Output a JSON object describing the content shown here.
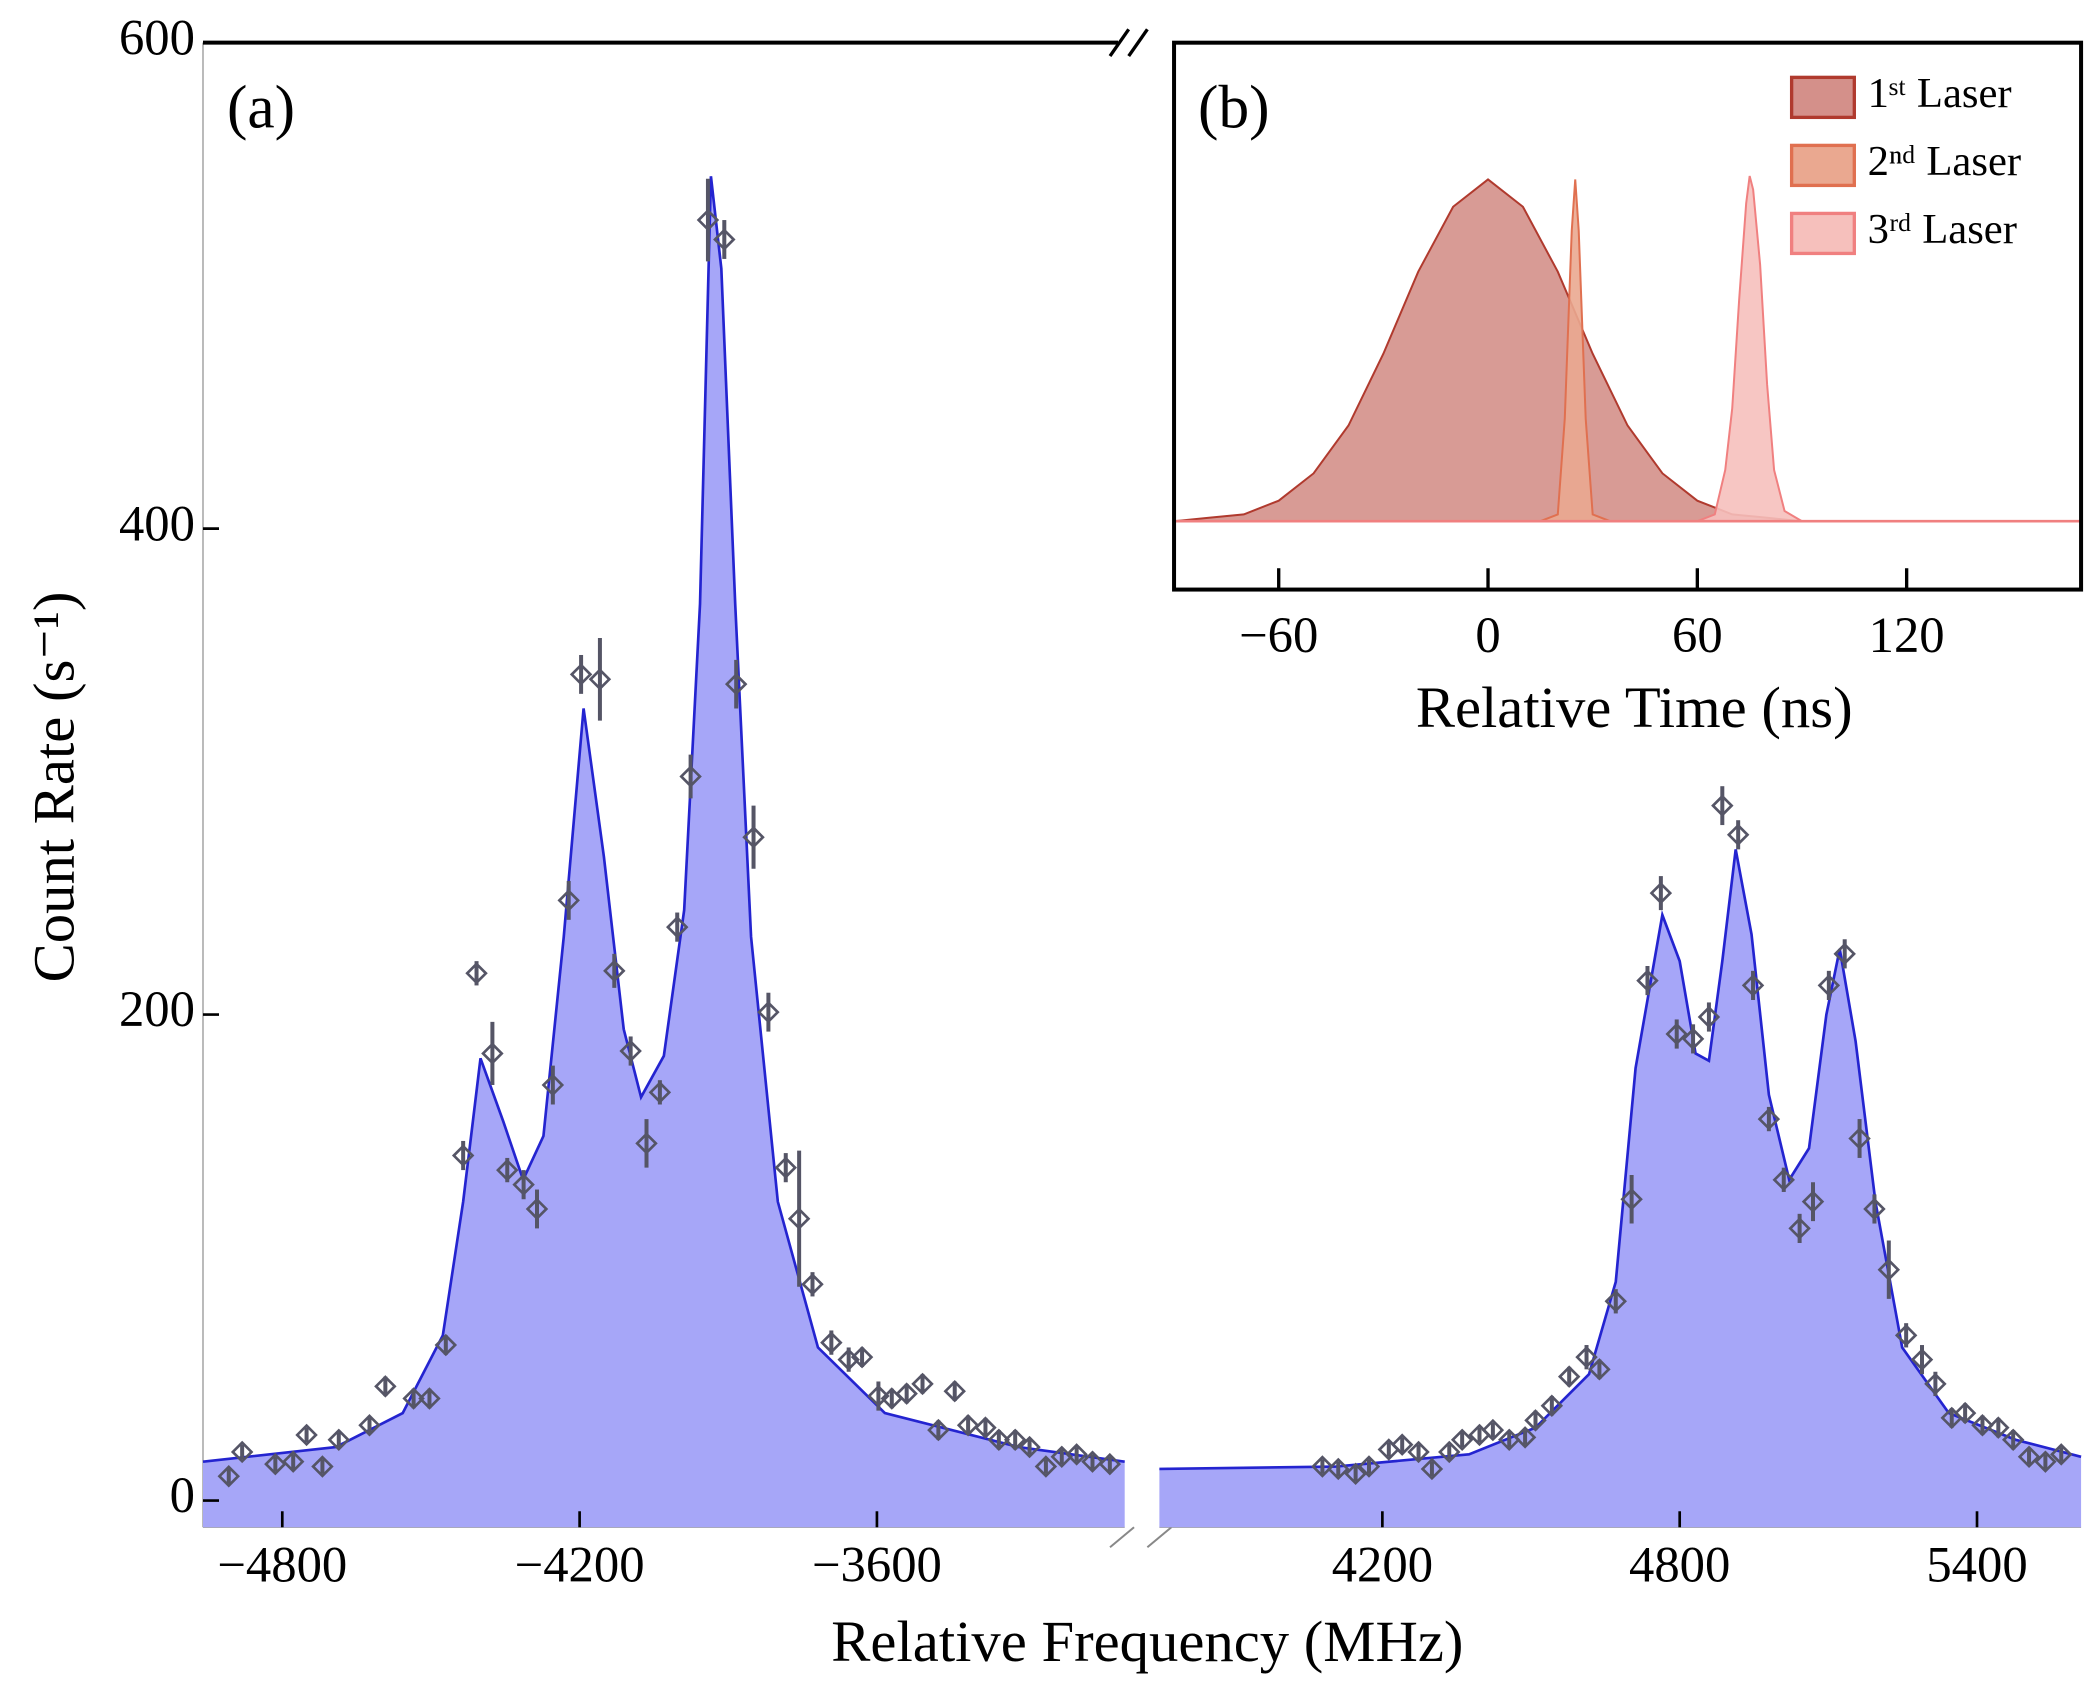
{
  "chart_data": [
    {
      "type": "area",
      "panel_label": "(a)",
      "xlabel": "Relative Frequency (MHz)",
      "ylabel": "Count Rate (s⁻¹)",
      "xlim": [
        -4960,
        5610
      ],
      "axis_break": [
        -3100,
        3750
      ],
      "ylim": [
        -11,
        600
      ],
      "xticks": [
        {
          "value": -4800,
          "label": "−4800"
        },
        {
          "value": -4200,
          "label": "−4200"
        },
        {
          "value": -3600,
          "label": "−3600"
        },
        4200,
        4800,
        5400
      ],
      "yticks": [
        0,
        200,
        400,
        600
      ],
      "fill_color": "#a6a6f8",
      "line_color": "#2424d0",
      "marker_color": "#555566",
      "series": [
        {
          "x": [
            -4960,
            -4692,
            -4557,
            -4476,
            -4435,
            -4400,
            -4354,
            -4314,
            -4273,
            -4232,
            -4192,
            -4151,
            -4111,
            -4076,
            -4030,
            -3989,
            -3957,
            -3935,
            -3914,
            -3886,
            -3854,
            -3800,
            -3719,
            -3584,
            -3314,
            -3100
          ],
          "values": [
            16,
            22,
            36,
            68,
            123,
            182,
            156,
            132,
            150,
            232,
            326,
            265,
            194,
            166,
            183,
            243,
            369,
            545,
            507,
            369,
            232,
            123,
            63,
            36,
            22,
            16
          ]
        },
        {
          "x": [
            3750,
            4106,
            4375,
            4509,
            4617,
            4671,
            4711,
            4765,
            4800,
            4832,
            4859,
            4886,
            4913,
            4945,
            4980,
            5021,
            5061,
            5096,
            5123,
            5155,
            5195,
            5249,
            5343,
            5478,
            5610
          ],
          "values": [
            13,
            14,
            19,
            30,
            52,
            90,
            178,
            241,
            222,
            184,
            181,
            222,
            268,
            233,
            167,
            132,
            145,
            200,
            227,
            189,
            123,
            63,
            36,
            25,
            18
          ]
        }
      ],
      "measured": {
        "x": [
          -4908,
          -4881,
          -4814,
          -4778,
          -4751,
          -4719,
          -4686,
          -4624,
          -4592,
          -4535,
          -4503,
          -4470,
          -4435,
          -4408,
          -4376,
          -4346,
          -4313,
          -4286,
          -4254,
          -4222,
          -4197,
          -4159,
          -4130,
          -4097,
          -4065,
          -4038,
          -4003,
          -3976,
          -3941,
          -3908,
          -3884,
          -3849,
          -3819,
          -3784,
          -3757,
          -3730,
          -3692,
          -3657,
          -3630,
          -3597,
          -3570,
          -3540,
          -3508,
          -3476,
          -3443,
          -3416,
          -3381,
          -3354,
          -3321,
          -3292,
          -3259,
          -3227,
          -3197,
          -3165,
          -3130,
          4079,
          4111,
          4146,
          4173,
          4213,
          4240,
          4273,
          4300,
          4335,
          4361,
          4396,
          4423,
          4456,
          4488,
          4509,
          4542,
          4577,
          4612,
          4638,
          4671,
          4703,
          4735,
          4762,
          4794,
          4827,
          4859,
          4886,
          4918,
          4948,
          4980,
          5010,
          5042,
          5069,
          5101,
          5133,
          5163,
          5193,
          5222,
          5257,
          5289,
          5316,
          5349,
          5376,
          5411,
          5443,
          5473,
          5505,
          5538,
          5570
        ],
        "values": [
          10,
          20,
          15,
          16,
          27,
          14,
          25,
          31,
          47,
          42,
          42,
          64,
          142,
          217,
          184,
          136,
          130,
          120,
          171,
          247,
          340,
          338,
          218,
          185,
          147,
          168,
          236,
          298,
          527,
          519,
          336,
          273,
          201,
          137,
          116,
          89,
          65,
          58,
          59,
          43,
          42,
          44,
          48,
          29,
          45,
          31,
          30,
          25,
          25,
          22,
          14,
          18,
          19,
          16,
          15,
          14,
          13,
          11,
          14,
          21,
          23,
          20,
          13,
          20,
          25,
          27,
          29,
          25,
          26,
          33,
          39,
          51,
          59,
          54,
          82,
          124,
          214,
          250,
          192,
          190,
          199,
          286,
          274,
          212,
          157,
          132,
          112,
          123,
          212,
          225,
          149,
          120,
          95,
          68,
          58,
          48,
          34,
          36,
          31,
          30,
          25,
          18,
          16,
          19
        ],
        "errors": [
          3,
          3,
          3,
          3,
          3,
          3,
          3,
          3,
          4,
          4,
          4,
          4,
          6,
          5,
          13,
          5,
          6,
          8,
          8,
          8,
          8,
          17,
          7,
          6,
          10,
          5,
          6,
          9,
          17,
          8,
          10,
          13,
          8,
          6,
          28,
          5,
          5,
          5,
          4,
          6,
          4,
          4,
          4,
          4,
          4,
          4,
          4,
          4,
          4,
          3,
          3,
          3,
          3,
          3,
          3,
          3,
          3,
          3,
          3,
          3,
          3,
          3,
          3,
          3,
          3,
          3,
          3,
          3,
          3,
          4,
          4,
          4,
          5,
          4,
          5,
          10,
          6,
          7,
          6,
          6,
          6,
          8,
          6,
          6,
          5,
          5,
          6,
          8,
          6,
          6,
          8,
          6,
          12,
          5,
          6,
          5,
          4,
          4,
          4,
          4,
          4,
          3,
          3,
          3
        ]
      }
    },
    {
      "type": "area",
      "panel_label": "(b)",
      "xlabel": "Relative Time (ns)",
      "xlim": [
        -90,
        170
      ],
      "ylim": [
        -0.2,
        1.4
      ],
      "xticks": [
        {
          "value": -60,
          "label": "−60"
        },
        0,
        60,
        120
      ],
      "series": [
        {
          "name": "1ˢᵗ Laser",
          "color": "#d4908a",
          "line_color": "#b03a2e",
          "x": [
            -90,
            -80,
            -70,
            -60,
            -50,
            -40,
            -30,
            -20,
            -10,
            0,
            10,
            20,
            30,
            40,
            50,
            60,
            70,
            80,
            90,
            170
          ],
          "values": [
            0,
            0.01,
            0.02,
            0.06,
            0.14,
            0.28,
            0.49,
            0.73,
            0.92,
            1,
            0.92,
            0.73,
            0.49,
            0.28,
            0.14,
            0.06,
            0.02,
            0.01,
            0,
            0
          ]
        },
        {
          "name": "2ⁿᵈ Laser",
          "color": "#eaa890",
          "line_color": "#e07050",
          "x": [
            15,
            20,
            22,
            24,
            25,
            26,
            28,
            30,
            35
          ],
          "values": [
            0,
            0.02,
            0.3,
            0.85,
            1,
            0.85,
            0.3,
            0.02,
            0
          ]
        },
        {
          "name": "3ʳᵈ Laser",
          "color": "#f6c0bc",
          "line_color": "#f08080",
          "x": [
            60,
            65,
            68,
            70,
            72,
            74,
            75,
            76,
            78,
            80,
            82,
            85,
            90
          ],
          "values": [
            0,
            0.02,
            0.15,
            0.33,
            0.65,
            0.93,
            1.01,
            0.97,
            0.75,
            0.4,
            0.15,
            0.03,
            0
          ]
        }
      ]
    }
  ]
}
